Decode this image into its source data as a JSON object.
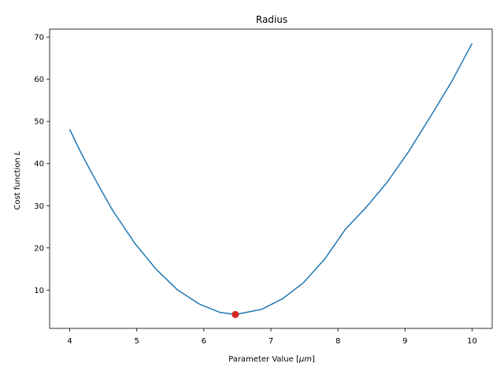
{
  "chart_data": {
    "type": "line",
    "title": "Radius",
    "xlabel": "Parameter Value [",
    "xlabel_unit": "μm",
    "xlabel_suffix": "]",
    "ylabel": "Cost function ",
    "ylabel_var": "L",
    "xlim": [
      3.7,
      10.3
    ],
    "ylim": [
      0.9,
      71.9
    ],
    "xticks": [
      4,
      5,
      6,
      7,
      8,
      9,
      10
    ],
    "yticks": [
      10,
      20,
      30,
      40,
      50,
      60,
      70
    ],
    "grid": false,
    "series": [
      {
        "color": "#1f77b4",
        "x": [
          4.0,
          4.16,
          4.32,
          4.48,
          4.64,
          4.97,
          5.29,
          5.61,
          5.93,
          6.24,
          6.47,
          6.86,
          7.17,
          7.49,
          7.81,
          8.11,
          8.43,
          8.74,
          9.06,
          9.37,
          9.69,
          10.0
        ],
        "y": [
          48.1,
          42.8,
          38.0,
          33.4,
          28.9,
          21.1,
          14.9,
          10.0,
          6.7,
          4.7,
          4.2,
          5.4,
          7.9,
          11.8,
          17.5,
          24.4,
          29.8,
          35.7,
          43.0,
          50.9,
          59.3,
          68.5
        ]
      }
    ],
    "minimum_marker": {
      "x": 6.47,
      "y": 4.2,
      "color": "#d62728"
    }
  }
}
